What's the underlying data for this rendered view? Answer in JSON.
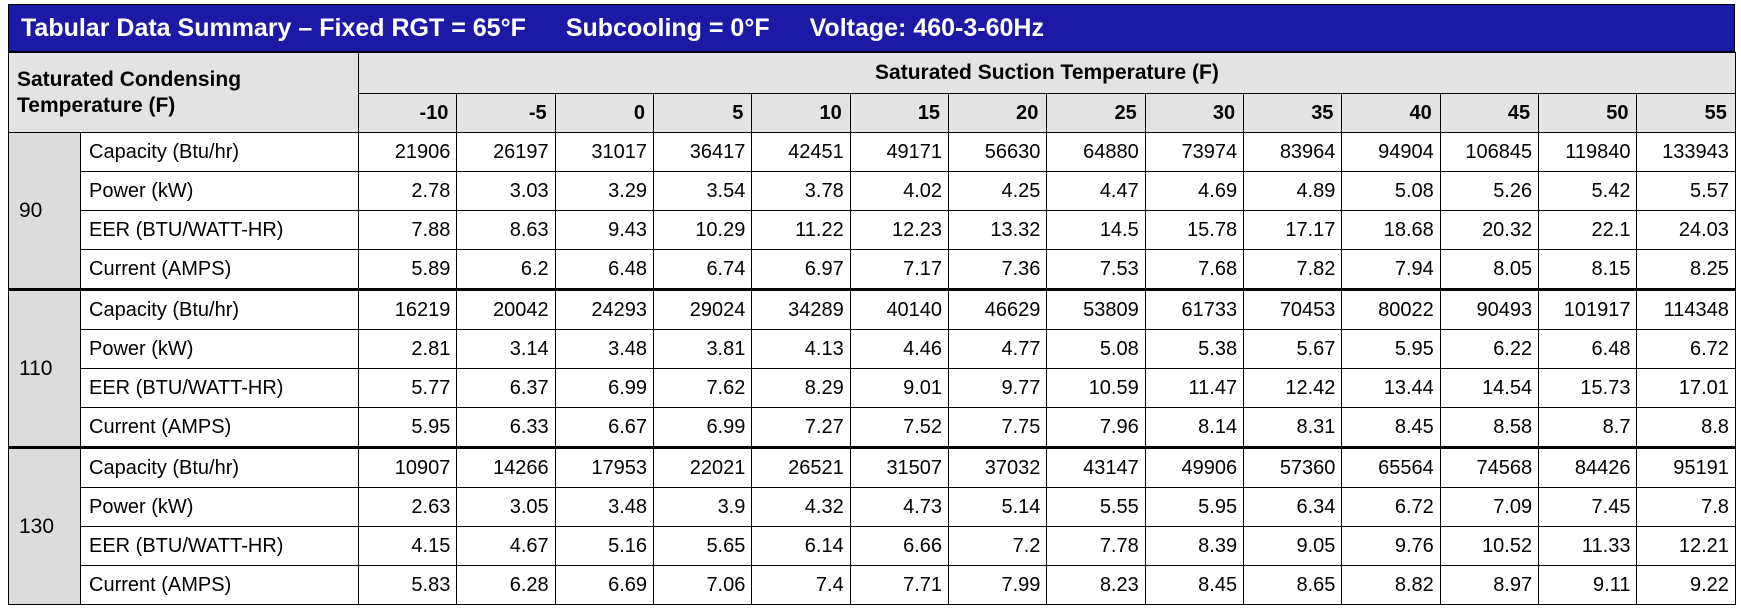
{
  "header": {
    "title": "Tabular Data Summary – Fixed RGT = 65°F",
    "subcooling": "Subcooling = 0°F",
    "voltage": "Voltage: 460-3-60Hz"
  },
  "table": {
    "corner": "Saturated Condensing Temperature (F)",
    "group_header": "Saturated Suction Temperature (F)",
    "columns": [
      -10,
      -5,
      0,
      5,
      10,
      15,
      20,
      25,
      30,
      35,
      40,
      45,
      50,
      55
    ],
    "groups": [
      {
        "temp": 90,
        "rows": [
          {
            "label": "Capacity (Btu/hr)",
            "values": [
              21906,
              26197,
              31017,
              36417,
              42451,
              49171,
              56630,
              64880,
              73974,
              83964,
              94904,
              106845,
              119840,
              133943
            ]
          },
          {
            "label": "Power (kW)",
            "values": [
              2.78,
              3.03,
              3.29,
              3.54,
              3.78,
              4.02,
              4.25,
              4.47,
              4.69,
              4.89,
              5.08,
              5.26,
              5.42,
              5.57
            ]
          },
          {
            "label": "EER (BTU/WATT-HR)",
            "values": [
              7.88,
              8.63,
              9.43,
              10.29,
              11.22,
              12.23,
              13.32,
              14.5,
              15.78,
              17.17,
              18.68,
              20.32,
              22.1,
              24.03
            ]
          },
          {
            "label": "Current (AMPS)",
            "values": [
              5.89,
              6.2,
              6.48,
              6.74,
              6.97,
              7.17,
              7.36,
              7.53,
              7.68,
              7.82,
              7.94,
              8.05,
              8.15,
              8.25
            ]
          }
        ]
      },
      {
        "temp": 110,
        "rows": [
          {
            "label": "Capacity (Btu/hr)",
            "values": [
              16219,
              20042,
              24293,
              29024,
              34289,
              40140,
              46629,
              53809,
              61733,
              70453,
              80022,
              90493,
              101917,
              114348
            ]
          },
          {
            "label": "Power (kW)",
            "values": [
              2.81,
              3.14,
              3.48,
              3.81,
              4.13,
              4.46,
              4.77,
              5.08,
              5.38,
              5.67,
              5.95,
              6.22,
              6.48,
              6.72
            ]
          },
          {
            "label": "EER (BTU/WATT-HR)",
            "values": [
              5.77,
              6.37,
              6.99,
              7.62,
              8.29,
              9.01,
              9.77,
              10.59,
              11.47,
              12.42,
              13.44,
              14.54,
              15.73,
              17.01
            ]
          },
          {
            "label": "Current (AMPS)",
            "values": [
              5.95,
              6.33,
              6.67,
              6.99,
              7.27,
              7.52,
              7.75,
              7.96,
              8.14,
              8.31,
              8.45,
              8.58,
              8.7,
              8.8
            ]
          }
        ]
      },
      {
        "temp": 130,
        "rows": [
          {
            "label": "Capacity (Btu/hr)",
            "values": [
              10907,
              14266,
              17953,
              22021,
              26521,
              31507,
              37032,
              43147,
              49906,
              57360,
              65564,
              74568,
              84426,
              95191
            ]
          },
          {
            "label": "Power (kW)",
            "values": [
              2.63,
              3.05,
              3.48,
              3.9,
              4.32,
              4.73,
              5.14,
              5.55,
              5.95,
              6.34,
              6.72,
              7.09,
              7.45,
              7.8
            ]
          },
          {
            "label": "EER (BTU/WATT-HR)",
            "values": [
              4.15,
              4.67,
              5.16,
              5.65,
              6.14,
              6.66,
              7.2,
              7.78,
              8.39,
              9.05,
              9.76,
              10.52,
              11.33,
              12.21
            ]
          },
          {
            "label": "Current (AMPS)",
            "values": [
              5.83,
              6.28,
              6.69,
              7.06,
              7.4,
              7.71,
              7.99,
              8.23,
              8.45,
              8.65,
              8.82,
              8.97,
              9.11,
              9.22
            ]
          }
        ]
      }
    ]
  }
}
